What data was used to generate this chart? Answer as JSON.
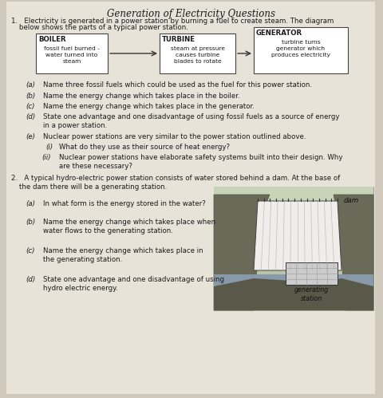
{
  "title": "Generation of Electricity Questions",
  "bg_color": "#cfc8bb",
  "page_color": "#e8e3d8",
  "text_color": "#1a1a1a",
  "title_fontsize": 8.5,
  "body_fontsize": 6.2,
  "boiler_title": "BOILER",
  "boiler_body": "fossil fuel burned -\nwater turned into\nsteam",
  "turbine_title": "TURBINE",
  "turbine_body": "steam at pressure\ncauses turbine\nblades to rotate",
  "generator_title": "GENERATOR",
  "generator_body": "turbine turns\ngenerator which\nproduces electricity",
  "dam_label": "dam",
  "gen_station_label": "generating\nstation"
}
